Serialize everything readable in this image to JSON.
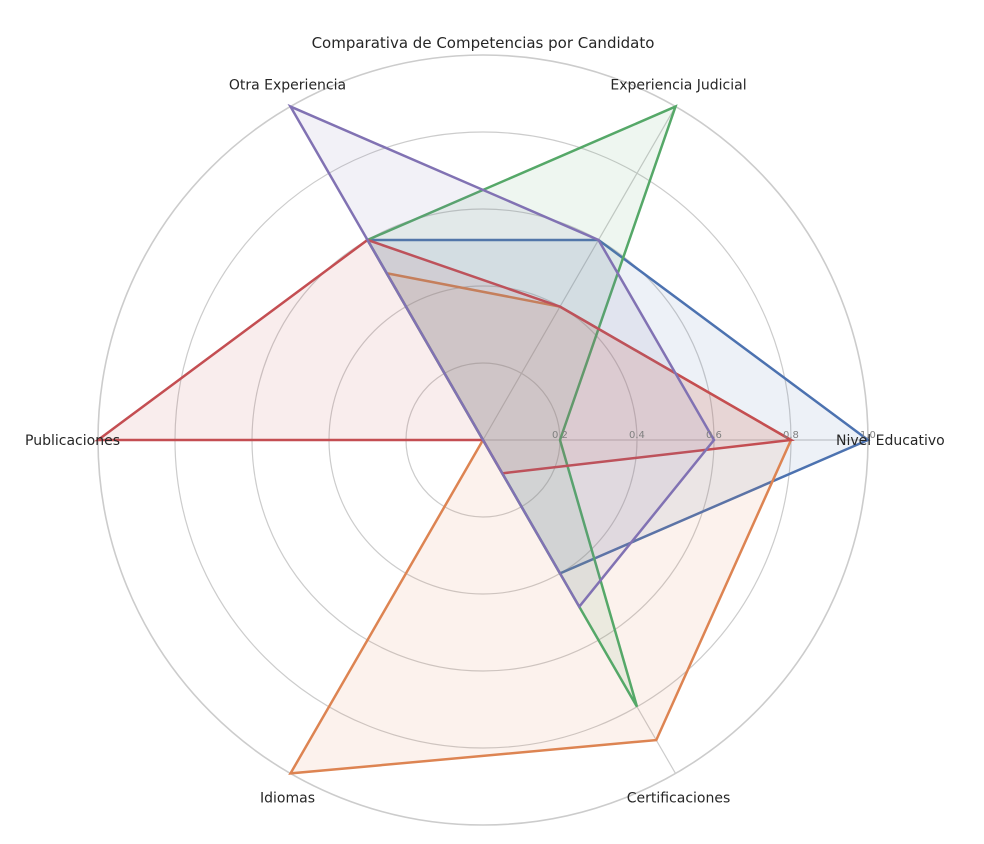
{
  "chart_data": {
    "type": "radar",
    "title": "Comparativa de Competencias por Candidato",
    "axes": [
      "Nivel Educativo",
      "Experiencia Judicial",
      "Otra Experiencia",
      "Publicaciones",
      "Idiomas",
      "Certificaciones"
    ],
    "rlim": [
      0,
      1.0
    ],
    "rticks": [
      "0.2",
      "0.4",
      "0.6",
      "0.8",
      "1.0"
    ],
    "grid": true,
    "legend": "none",
    "series": [
      {
        "color": "#4c72b0",
        "values": [
          1.0,
          0.6,
          0.6,
          0.0,
          0.0,
          0.4
        ]
      },
      {
        "color": "#dd8452",
        "values": [
          0.8,
          0.4,
          0.5,
          0.0,
          1.0,
          0.9
        ]
      },
      {
        "color": "#55a868",
        "values": [
          0.2,
          1.0,
          0.6,
          0.0,
          0.0,
          0.8
        ]
      },
      {
        "color": "#c44e52",
        "values": [
          0.8,
          0.4,
          0.6,
          1.0,
          0.0,
          0.1
        ]
      },
      {
        "color": "#8172b3",
        "values": [
          0.6,
          0.6,
          1.0,
          0.0,
          0.0,
          0.5
        ]
      }
    ]
  }
}
